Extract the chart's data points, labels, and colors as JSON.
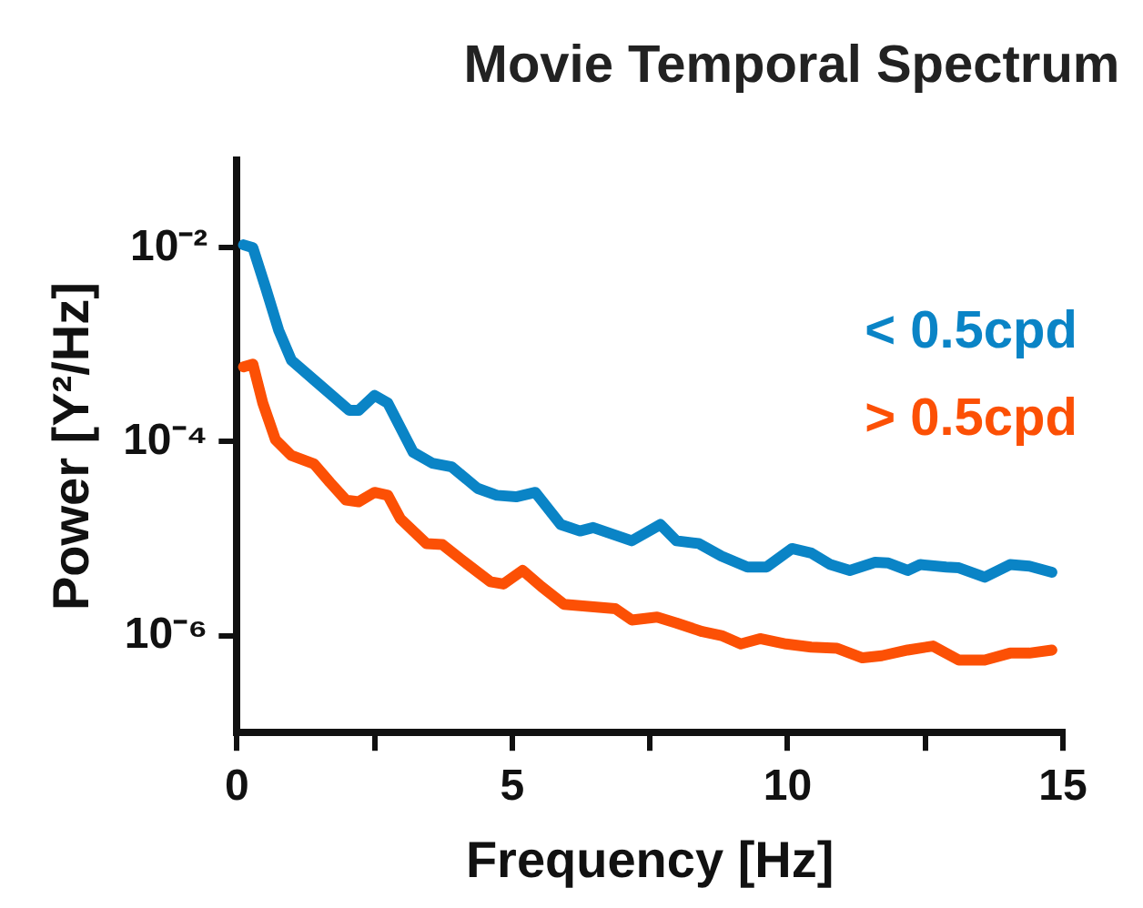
{
  "chart_data": {
    "type": "line",
    "title": "Movie Temporal Spectrum",
    "xlabel": "Frequency [Hz]",
    "ylabel": "Power [Y²/Hz]",
    "log": "y",
    "xlim": [
      0,
      15
    ],
    "ylim": [
      1e-07,
      0.08
    ],
    "xticks": [
      0,
      {
        "value": 2.5,
        "label": null
      },
      5,
      {
        "value": 7.5,
        "label": null
      },
      10,
      {
        "value": 12.5,
        "label": null
      },
      15
    ],
    "yticks": [
      {
        "value": 0.01,
        "label": "10⁻²"
      },
      {
        "value": 0.0001,
        "label": "10⁻⁴"
      },
      {
        "value": 1e-06,
        "label": "10⁻⁶"
      }
    ],
    "grid": false,
    "legend": "top right",
    "marker": "none",
    "line_style": "solid",
    "series": [
      {
        "name": "< 0.5cpd",
        "color": "#0a84c6",
        "x": [
          0.12,
          0.29,
          0.52,
          0.76,
          0.99,
          1.45,
          2.04,
          2.21,
          2.5,
          2.74,
          3.2,
          3.55,
          3.9,
          4.37,
          4.72,
          5.07,
          5.42,
          5.88,
          6.23,
          6.47,
          7.17,
          7.69,
          7.98,
          8.39,
          8.8,
          9.27,
          9.62,
          10.08,
          10.43,
          10.78,
          11.13,
          11.59,
          11.83,
          12.18,
          12.41,
          12.88,
          13.11,
          13.58,
          14.04,
          14.39,
          14.8
        ],
        "values": [
          0.0107,
          0.01,
          0.0039,
          0.0014,
          0.00069,
          0.00041,
          0.00021,
          0.00021,
          0.0003,
          0.00025,
          7.8e-05,
          6e-05,
          5.5e-05,
          3.3e-05,
          2.8e-05,
          2.7e-05,
          3e-05,
          1.4e-05,
          1.2e-05,
          1.3e-05,
          9.5e-06,
          1.4e-05,
          9.5e-06,
          8.9e-06,
          6.6e-06,
          5.1e-06,
          5.1e-06,
          7.9e-06,
          7.1e-06,
          5.4e-06,
          4.7e-06,
          5.7e-06,
          5.6e-06,
          4.7e-06,
          5.4e-06,
          5.1e-06,
          5e-06,
          4e-06,
          5.4e-06,
          5.2e-06,
          4.5e-06
        ]
      },
      {
        "name": "> 0.5cpd",
        "color": "#fc5005",
        "x": [
          0.12,
          0.29,
          0.47,
          0.7,
          0.99,
          1.4,
          1.69,
          1.98,
          2.21,
          2.5,
          2.74,
          2.97,
          3.44,
          3.73,
          4.14,
          4.6,
          4.84,
          5.19,
          5.53,
          5.94,
          6.87,
          7.17,
          7.63,
          7.98,
          8.45,
          8.8,
          9.15,
          9.5,
          9.97,
          10.43,
          10.9,
          11.36,
          11.71,
          12.18,
          12.64,
          13.11,
          13.58,
          14.04,
          14.39,
          14.8
        ],
        "values": [
          0.00059,
          0.00063,
          0.00025,
          0.000105,
          7.2e-05,
          5.9e-05,
          3.8e-05,
          2.5e-05,
          2.4e-05,
          3e-05,
          2.8e-05,
          1.6e-05,
          8.9e-06,
          8.7e-06,
          5.7e-06,
          3.6e-06,
          3.4e-06,
          4.7e-06,
          3.2e-06,
          2.1e-06,
          1.9e-06,
          1.45e-06,
          1.55e-06,
          1.35e-06,
          1.1e-06,
          1e-06,
          8.2e-07,
          9.3e-07,
          8.2e-07,
          7.6e-07,
          7.4e-07,
          5.9e-07,
          6.2e-07,
          7.1e-07,
          7.8e-07,
          5.6e-07,
          5.6e-07,
          6.6e-07,
          6.6e-07,
          7.1e-07
        ]
      }
    ]
  }
}
